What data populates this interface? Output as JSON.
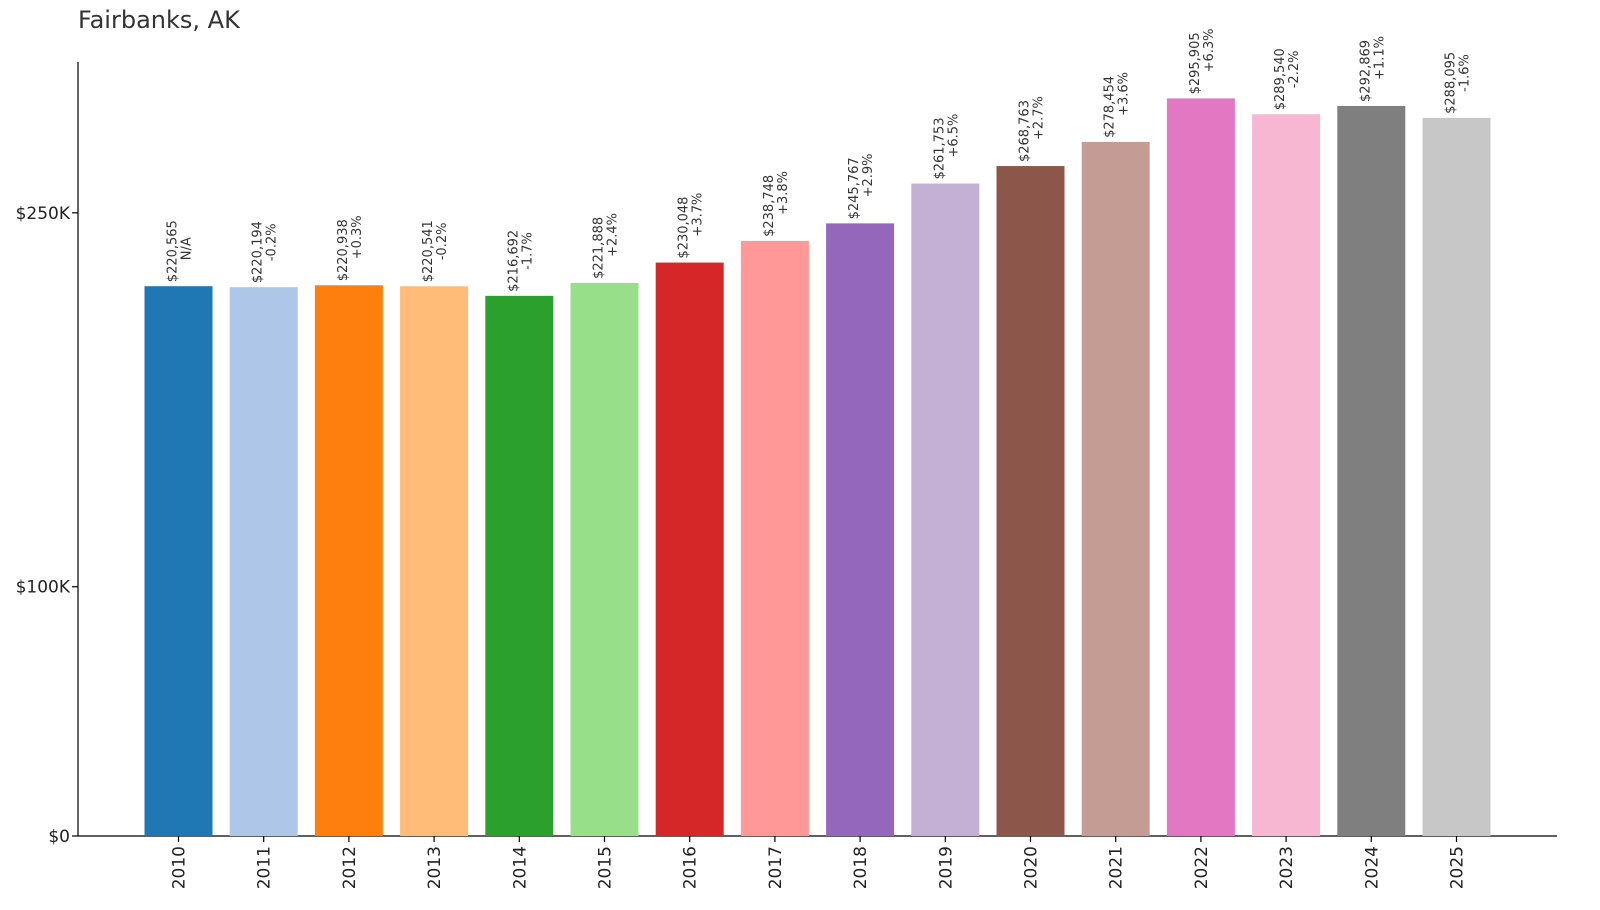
{
  "chart_data": {
    "type": "bar",
    "title": "Fairbanks, AK",
    "xlabel": "",
    "ylabel": "",
    "ylim": [
      0,
      310000
    ],
    "y_ticks": [
      {
        "value": 0,
        "label": "$0"
      },
      {
        "value": 100000,
        "label": "$100K"
      },
      {
        "value": 250000,
        "label": "$250K"
      }
    ],
    "categories": [
      "2010",
      "2011",
      "2012",
      "2013",
      "2014",
      "2015",
      "2016",
      "2017",
      "2018",
      "2019",
      "2020",
      "2021",
      "2022",
      "2023",
      "2024",
      "2025"
    ],
    "values": [
      220565,
      220194,
      220938,
      220541,
      216692,
      221888,
      230048,
      238748,
      245767,
      261753,
      268763,
      278454,
      295905,
      289540,
      292869,
      288095
    ],
    "value_labels": [
      "$220,565",
      "$220,194",
      "$220,938",
      "$220,541",
      "$216,692",
      "$221,888",
      "$230,048",
      "$238,748",
      "$245,767",
      "$261,753",
      "$268,763",
      "$278,454",
      "$295,905",
      "$289,540",
      "$292,869",
      "$288,095"
    ],
    "change_labels": [
      "N/A",
      "-0.2%",
      "+0.3%",
      "-0.2%",
      "-1.7%",
      "+2.4%",
      "+3.7%",
      "+3.8%",
      "+2.9%",
      "+6.5%",
      "+2.7%",
      "+3.6%",
      "+6.3%",
      "-2.2%",
      "+1.1%",
      "-1.6%"
    ],
    "colors": [
      "#1f77b4",
      "#aec7e8",
      "#ff7f0e",
      "#ffbb78",
      "#2ca02c",
      "#98df8a",
      "#d62728",
      "#ff9896",
      "#9467bd",
      "#c5b0d5",
      "#8c564b",
      "#c49c94",
      "#e377c2",
      "#f7b6d2",
      "#7f7f7f",
      "#c7c7c7"
    ],
    "grid": false,
    "legend": "none"
  }
}
